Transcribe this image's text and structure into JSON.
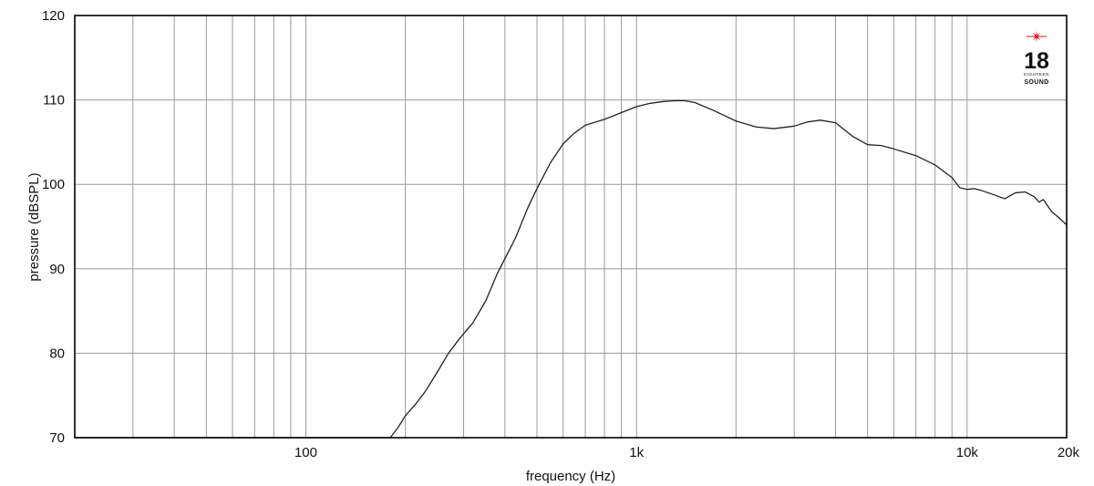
{
  "chart_data": {
    "type": "line",
    "xlabel": "frequency (Hz)",
    "ylabel": "pressure (dBSPL)",
    "x_scale": "log",
    "xlim": [
      20,
      20000
    ],
    "ylim": [
      70,
      120
    ],
    "y_ticks": [
      70,
      80,
      90,
      100,
      110,
      120
    ],
    "x_ticks": [
      {
        "value": 100,
        "label": "100"
      },
      {
        "value": 1000,
        "label": "1k"
      },
      {
        "value": 10000,
        "label": "10k"
      },
      {
        "value": 20000,
        "label": "20k"
      }
    ],
    "x_gridlines": [
      20,
      30,
      40,
      50,
      60,
      70,
      80,
      90,
      100,
      200,
      300,
      400,
      500,
      600,
      700,
      800,
      900,
      1000,
      2000,
      3000,
      4000,
      5000,
      6000,
      7000,
      8000,
      9000,
      10000,
      20000
    ],
    "grid": true,
    "series": [
      {
        "color": "#222222",
        "x": [
          20,
          100,
          180,
          190,
          200,
          215,
          230,
          250,
          270,
          290,
          300,
          320,
          350,
          380,
          400,
          430,
          470,
          500,
          550,
          600,
          650,
          700,
          800,
          900,
          1000,
          1100,
          1200,
          1300,
          1400,
          1500,
          1700,
          2000,
          2300,
          2600,
          3000,
          3300,
          3600,
          4000,
          4500,
          5000,
          5500,
          6000,
          7000,
          8000,
          9000,
          9500,
          10000,
          10500,
          11000,
          12000,
          13000,
          14000,
          15000,
          16000,
          16500,
          17000,
          18000,
          19000,
          20000
        ],
        "y": [
          70,
          70,
          70,
          71.2,
          72.6,
          74.0,
          75.5,
          77.8,
          80.0,
          81.6,
          82.3,
          83.6,
          86.2,
          89.5,
          91.2,
          93.6,
          97.3,
          99.5,
          102.6,
          104.8,
          106.1,
          107.0,
          107.7,
          108.5,
          109.2,
          109.6,
          109.8,
          109.9,
          109.9,
          109.7,
          108.8,
          107.5,
          106.8,
          106.6,
          106.9,
          107.4,
          107.6,
          107.3,
          105.7,
          104.7,
          104.6,
          104.2,
          103.4,
          102.3,
          100.8,
          99.6,
          99.4,
          99.5,
          99.3,
          98.8,
          98.3,
          99.0,
          99.1,
          98.5,
          97.9,
          98.2,
          96.8,
          96.0,
          95.2
        ]
      }
    ]
  },
  "logo": {
    "number": "18",
    "top_text": "EIGHTEEN",
    "bottom_text": "SOUND",
    "star_color": "#e01b1b"
  }
}
